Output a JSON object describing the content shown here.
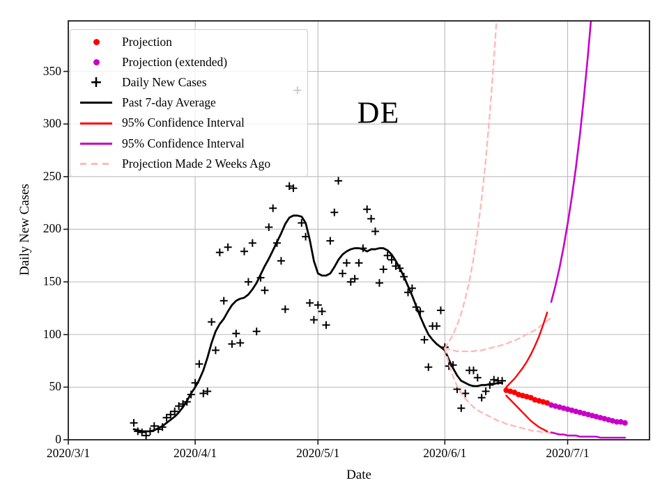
{
  "chart_data": {
    "type": "line",
    "annotation": "DE",
    "xlabel": "Date",
    "ylabel": "Daily New Cases",
    "grid": true,
    "legend_position": "upper left",
    "x_axis_origin_date": "2020/3/1",
    "xlim_days": [
      0,
      142
    ],
    "ylim": [
      0,
      398
    ],
    "x_ticks": [
      {
        "day": 0,
        "label": "2020/3/1"
      },
      {
        "day": 31,
        "label": "2020/4/1"
      },
      {
        "day": 61,
        "label": "2020/5/1"
      },
      {
        "day": 92,
        "label": "2020/6/1"
      },
      {
        "day": 122,
        "label": "2020/7/1"
      }
    ],
    "y_ticks": [
      0,
      50,
      100,
      150,
      200,
      250,
      300,
      350
    ],
    "colors": {
      "red": "#ff0000",
      "magenta": "#c800c8",
      "pink": "#ffb9b9",
      "black": "#000000",
      "grid": "#bababa",
      "spine": "#1a1a1a"
    },
    "series": [
      {
        "id": "daily-new-cases",
        "label": "Daily New Cases",
        "kind": "plus",
        "color": "black",
        "width": 2,
        "start_day": 16,
        "values": [
          16,
          8,
          7,
          4,
          8,
          13,
          10,
          12,
          21,
          24,
          27,
          32,
          34,
          36,
          43,
          54,
          72,
          44,
          46,
          112,
          85,
          178,
          132,
          183,
          91,
          101,
          92,
          179,
          150,
          187,
          103,
          154,
          142,
          202,
          220,
          187,
          170,
          124,
          241,
          239,
          332,
          206,
          193,
          130,
          114,
          128,
          122,
          109,
          189,
          216,
          246,
          158,
          168,
          150,
          153,
          168,
          182,
          219,
          210,
          198,
          149,
          162,
          175,
          171,
          165,
          163,
          155,
          140,
          144,
          126,
          122,
          95,
          69,
          108,
          108,
          123,
          88,
          70,
          71,
          48,
          30,
          44,
          66,
          66,
          59,
          40,
          46,
          52,
          57,
          56,
          56
        ]
      },
      {
        "id": "past-7day-average",
        "label": "Past 7-day Average",
        "kind": "line",
        "color": "black",
        "width": 2.8,
        "start_day": 16,
        "values": [
          10,
          9,
          8,
          8,
          8,
          9,
          11,
          13,
          16,
          19,
          22,
          26,
          31,
          37,
          44,
          50,
          57,
          66,
          78,
          92,
          103,
          110,
          115,
          122,
          128,
          132,
          134,
          135,
          138,
          143,
          149,
          157,
          165,
          172,
          180,
          188,
          196,
          205,
          211,
          213,
          213,
          212,
          206,
          190,
          170,
          158,
          156,
          156,
          158,
          164,
          171,
          176,
          179,
          181,
          182,
          182,
          181,
          179,
          181,
          181,
          182,
          182,
          180,
          176,
          170,
          163,
          155,
          146,
          137,
          127,
          117,
          108,
          100,
          95,
          91,
          88,
          85,
          76,
          68,
          61,
          56,
          54,
          52,
          51,
          51,
          52,
          52,
          53,
          53,
          54,
          54
        ]
      },
      {
        "id": "old-projection-upper-ci",
        "label": "Projection Made 2 Weeks Ago",
        "kind": "line",
        "color": "pink",
        "width": 2.4,
        "dash": "7 6",
        "start_day": 92,
        "values": [
          87,
          93,
          100,
          109,
          120,
          134,
          151,
          172,
          198,
          229,
          266,
          310,
          362,
          420
        ]
      },
      {
        "id": "old-projection-center",
        "label": "Projection Made 2 Weeks Ago",
        "kind": "line",
        "color": "pink",
        "width": 2.4,
        "dash": "7 6",
        "start_day": 92,
        "values": [
          87,
          86,
          85,
          84,
          84,
          84,
          84,
          84,
          85,
          85,
          86,
          87,
          88,
          89,
          90,
          91,
          93,
          94,
          96,
          98,
          100,
          102,
          104,
          107,
          110,
          113,
          116
        ]
      },
      {
        "id": "old-projection-lower-ci",
        "label": "Projection Made 2 Weeks Ago",
        "kind": "line",
        "color": "pink",
        "width": 2.4,
        "dash": "7 6",
        "start_day": 92,
        "values": [
          87,
          72,
          60,
          51,
          44,
          39,
          35,
          31,
          28,
          26,
          24,
          22,
          20,
          18,
          17,
          15,
          14,
          13,
          12,
          11,
          10,
          9,
          8,
          8,
          7,
          7,
          6
        ]
      },
      {
        "id": "ci-upper-red",
        "label": "95% Confidence Interval",
        "kind": "line",
        "color": "red",
        "width": 2.4,
        "start_day": 107,
        "values": [
          50,
          54,
          58,
          63,
          68,
          74,
          81,
          89,
          98,
          109,
          121
        ]
      },
      {
        "id": "ci-lower-red",
        "label": "95% Confidence Interval",
        "kind": "line",
        "color": "red",
        "width": 2.4,
        "start_day": 107,
        "values": [
          42,
          38,
          34,
          30,
          26,
          22,
          18,
          15,
          12,
          10,
          8
        ]
      },
      {
        "id": "ci-upper-magenta",
        "label": "95% Confidence Interval",
        "kind": "line",
        "color": "magenta",
        "width": 2.6,
        "start_day": 118,
        "values": [
          131,
          146,
          163,
          183,
          205,
          230,
          258,
          290,
          326,
          367,
          412
        ]
      },
      {
        "id": "ci-lower-magenta",
        "label": "95% Confidence Interval",
        "kind": "line",
        "color": "magenta",
        "width": 2.6,
        "start_day": 118,
        "values": [
          7,
          6,
          5,
          5,
          4,
          4,
          4,
          3,
          3,
          3,
          3,
          3,
          2,
          2,
          2,
          2,
          2,
          2,
          2
        ]
      },
      {
        "id": "projection",
        "label": "Projection",
        "kind": "dots",
        "color": "red",
        "radius": 4,
        "start_day": 107,
        "values": [
          47,
          46,
          45,
          43,
          42,
          41,
          40,
          38,
          37,
          36,
          35
        ]
      },
      {
        "id": "projection-extended",
        "label": "Projection (extended)",
        "kind": "dots",
        "color": "magenta",
        "radius": 4,
        "start_day": 118,
        "values": [
          33,
          32,
          31,
          30,
          29,
          28,
          27,
          26,
          25,
          24,
          23,
          22,
          21,
          20,
          19,
          18,
          17,
          17,
          16
        ]
      }
    ],
    "legend": {
      "entries": [
        {
          "marker": "dot",
          "color": "red",
          "label": "Projection"
        },
        {
          "marker": "dot",
          "color": "magenta",
          "label": "Projection (extended)"
        },
        {
          "marker": "plus",
          "color": "black",
          "label": "Daily New Cases"
        },
        {
          "marker": "line",
          "color": "black",
          "label": "Past 7-day Average"
        },
        {
          "marker": "line",
          "color": "red",
          "label": "95% Confidence Interval"
        },
        {
          "marker": "line",
          "color": "magenta",
          "label": "95% Confidence Interval"
        },
        {
          "marker": "dashed",
          "color": "pink",
          "label": "Projection Made 2 Weeks Ago"
        }
      ]
    }
  }
}
